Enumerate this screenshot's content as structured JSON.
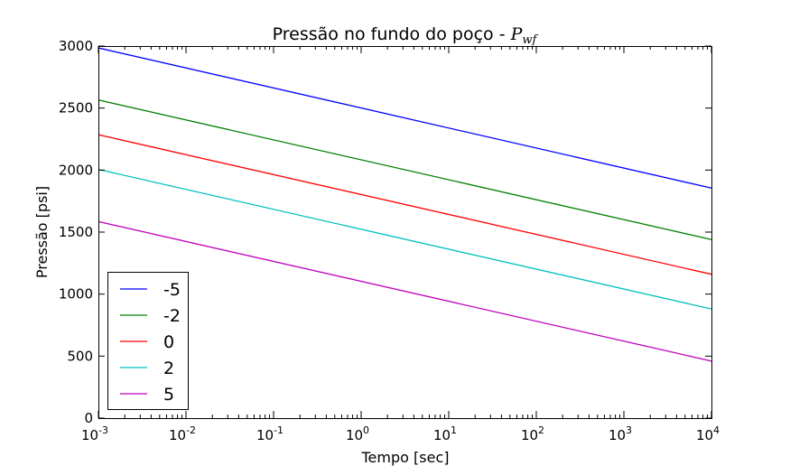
{
  "chart_data": {
    "type": "line",
    "title": "Pressão no fundo do poço - ",
    "title_math": "P",
    "title_math_sub": "wf",
    "xlabel": "Tempo [sec]",
    "ylabel": "Pressão [psi]",
    "xscale": "log",
    "xlim": [
      0.001,
      10000
    ],
    "ylim": [
      0,
      3000
    ],
    "grid": false,
    "legend_position": "lower-left",
    "x_ticks": [
      {
        "value": 0.001,
        "base": "10",
        "exp": "-3"
      },
      {
        "value": 0.01,
        "base": "10",
        "exp": "-2"
      },
      {
        "value": 0.1,
        "base": "10",
        "exp": "-1"
      },
      {
        "value": 1,
        "base": "10",
        "exp": "0"
      },
      {
        "value": 10,
        "base": "10",
        "exp": "1"
      },
      {
        "value": 100,
        "base": "10",
        "exp": "2"
      },
      {
        "value": 1000,
        "base": "10",
        "exp": "3"
      },
      {
        "value": 10000,
        "base": "10",
        "exp": "4"
      }
    ],
    "y_ticks": [
      {
        "value": 0,
        "label": "0"
      },
      {
        "value": 500,
        "label": "500"
      },
      {
        "value": 1000,
        "label": "1000"
      },
      {
        "value": 1500,
        "label": "1500"
      },
      {
        "value": 2000,
        "label": "2000"
      },
      {
        "value": 2500,
        "label": "2500"
      },
      {
        "value": 3000,
        "label": "3000"
      }
    ],
    "series": [
      {
        "name": "-5",
        "color": "#0000ff",
        "x": [
          0.001,
          10000
        ],
        "y": [
          2985,
          1855
        ]
      },
      {
        "name": "-2",
        "color": "#008000",
        "x": [
          0.001,
          10000
        ],
        "y": [
          2565,
          1440
        ]
      },
      {
        "name": "0",
        "color": "#ff0000",
        "x": [
          0.001,
          10000
        ],
        "y": [
          2285,
          1160
        ]
      },
      {
        "name": "2",
        "color": "#00bfbf",
        "x": [
          0.001,
          10000
        ],
        "y": [
          2005,
          880
        ]
      },
      {
        "name": "5",
        "color": "#bf00bf",
        "x": [
          0.001,
          10000
        ],
        "y": [
          1585,
          460
        ]
      }
    ]
  }
}
